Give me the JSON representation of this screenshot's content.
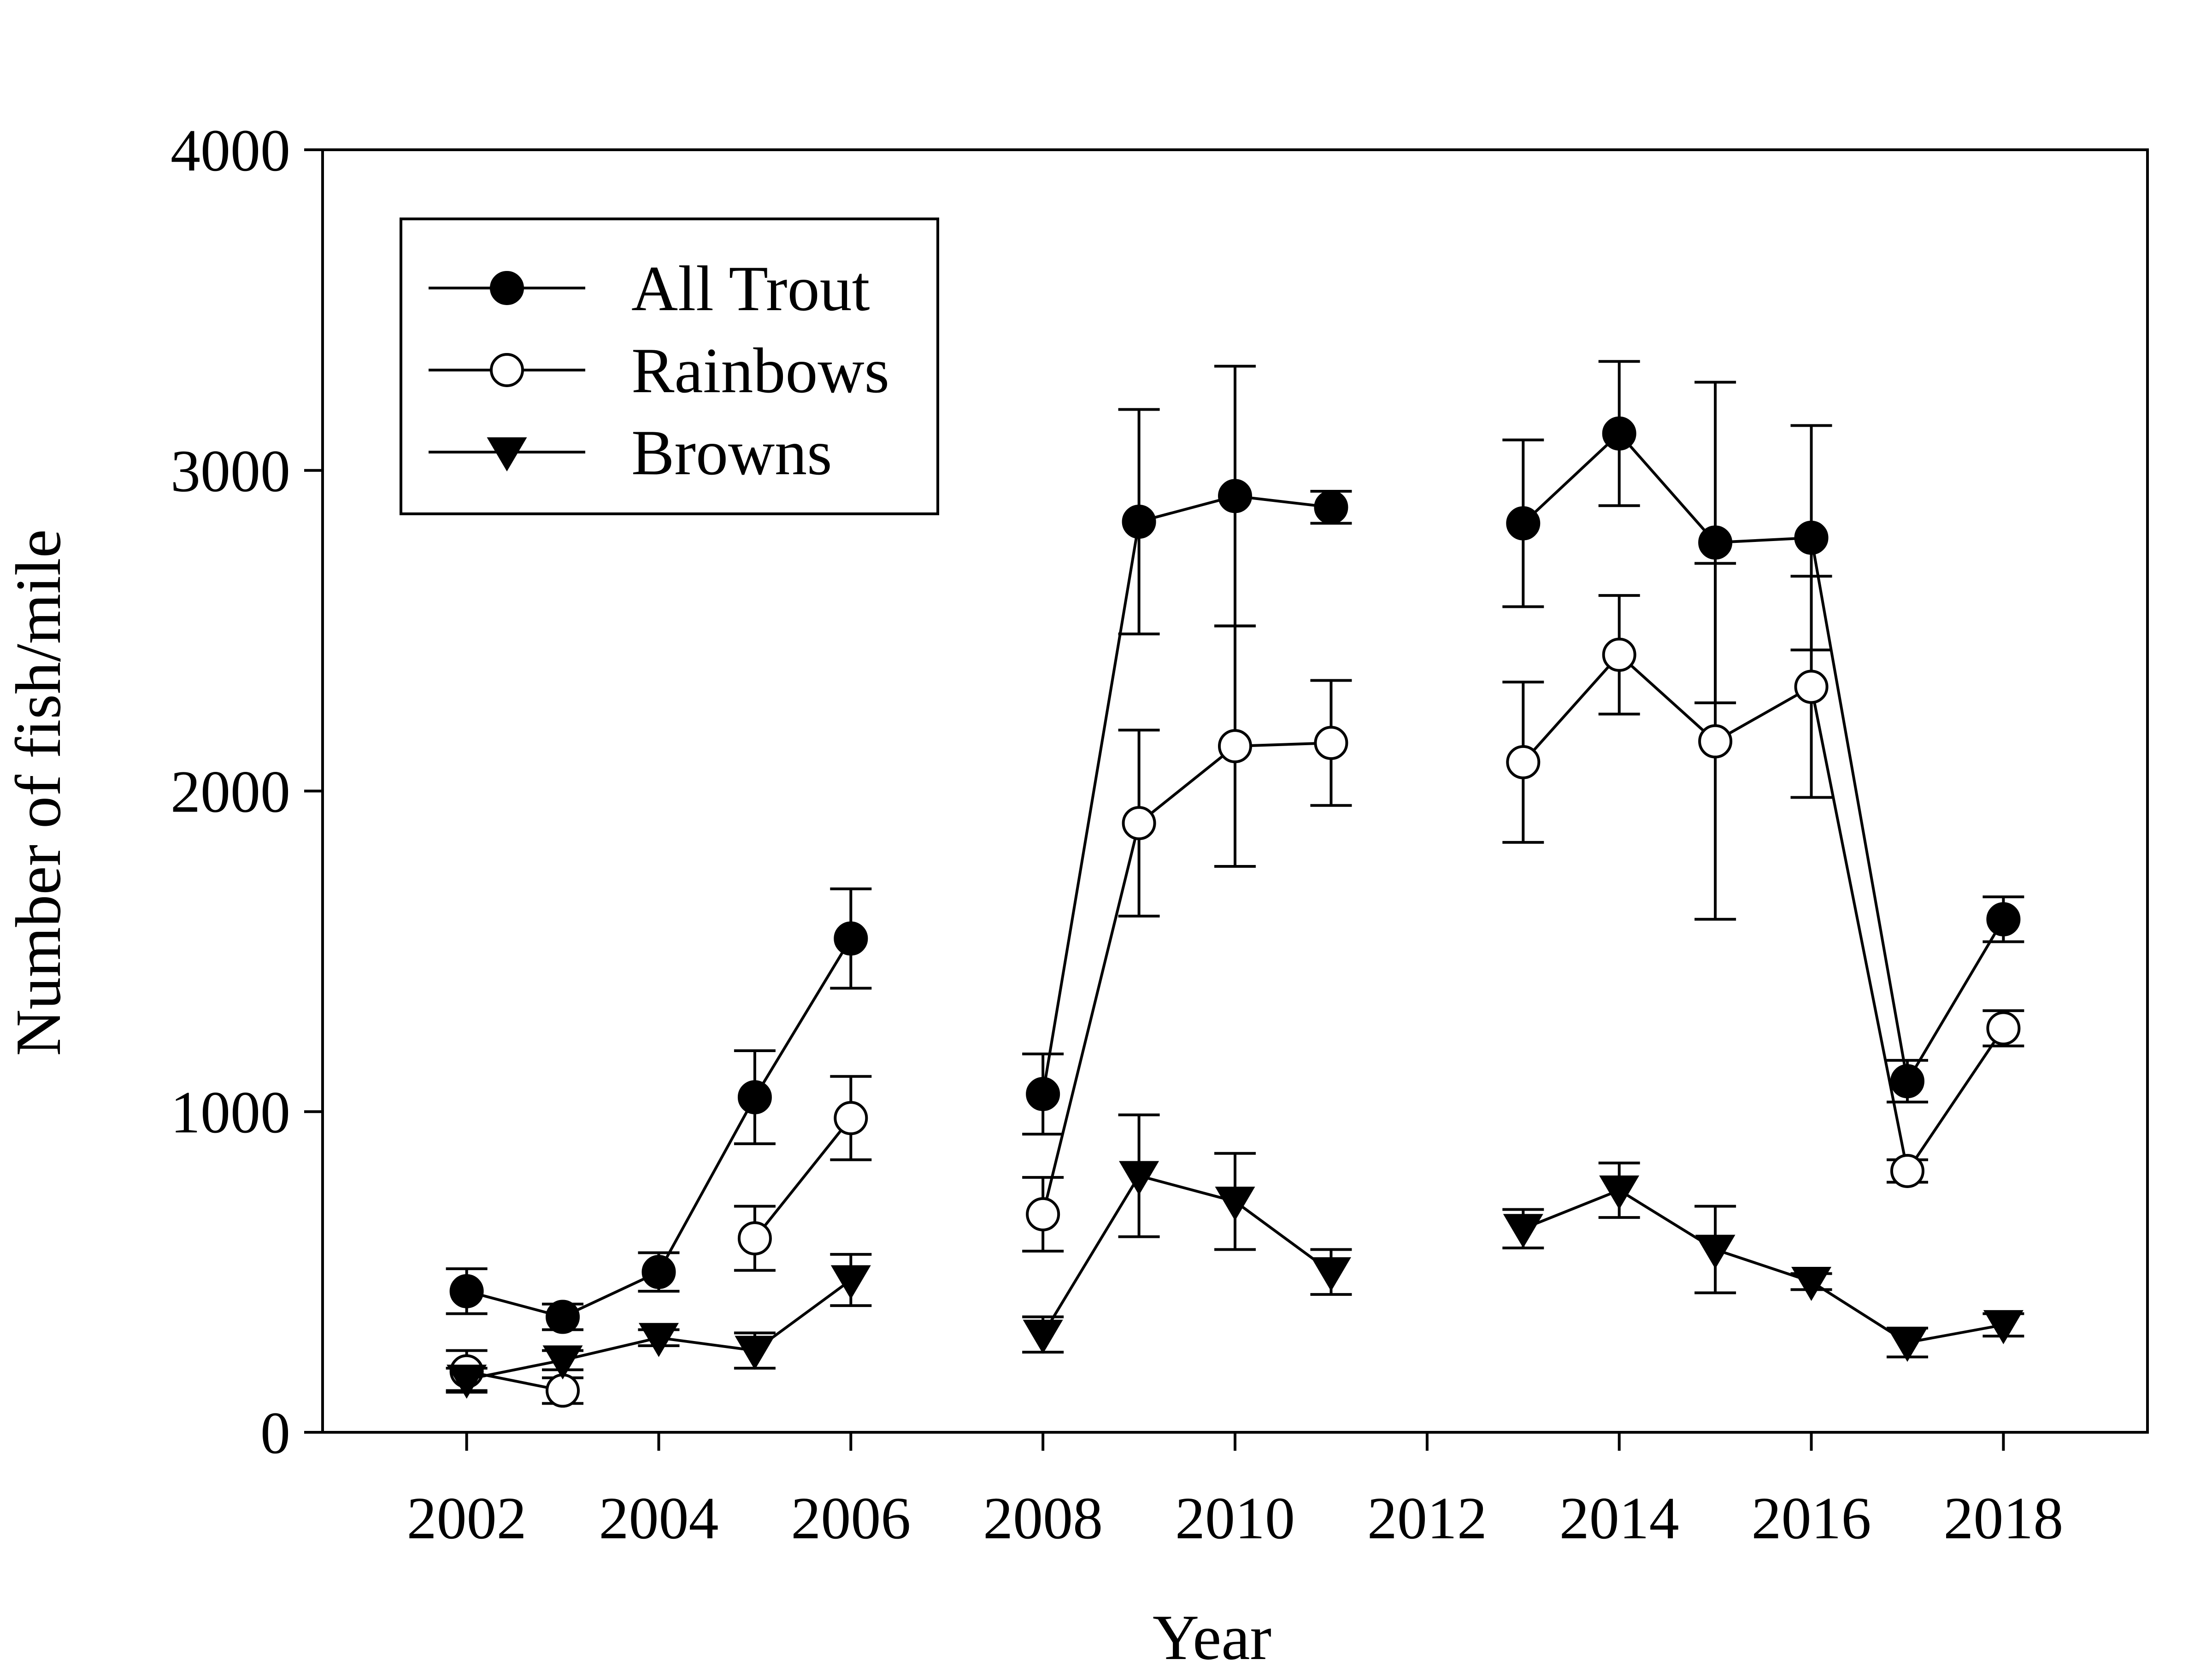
{
  "chart_data": {
    "type": "line",
    "title": "",
    "xlabel": "Year",
    "ylabel": "Number of fish/mile",
    "xlim": [
      2000.5,
      2019.5
    ],
    "ylim": [
      0,
      4000
    ],
    "xticks": [
      2002,
      2004,
      2006,
      2008,
      2010,
      2012,
      2014,
      2016,
      2018
    ],
    "yticks": [
      0,
      1000,
      2000,
      3000,
      4000
    ],
    "grid": false,
    "legend_position": "top-left",
    "series": [
      {
        "name": "All Trout",
        "marker": "filled-circle",
        "segments": [
          [
            {
              "x": 2002,
              "y": 440,
              "err": 70
            },
            {
              "x": 2003,
              "y": 360,
              "err": 40
            },
            {
              "x": 2004,
              "y": 500,
              "err": 60
            },
            {
              "x": 2005,
              "y": 1045,
              "err": 145
            },
            {
              "x": 2006,
              "y": 1540,
              "err": 155
            }
          ],
          [
            {
              "x": 2008,
              "y": 1055,
              "err": 125
            },
            {
              "x": 2009,
              "y": 2840,
              "err": 350
            },
            {
              "x": 2010,
              "y": 2920,
              "err": 405
            },
            {
              "x": 2011,
              "y": 2885,
              "err": 50
            }
          ],
          [
            {
              "x": 2013,
              "y": 2835,
              "err": 260
            },
            {
              "x": 2014,
              "y": 3115,
              "err": 225
            },
            {
              "x": 2015,
              "y": 2775,
              "err": 500
            },
            {
              "x": 2016,
              "y": 2790,
              "err": 350
            },
            {
              "x": 2017,
              "y": 1095,
              "err": 65
            },
            {
              "x": 2018,
              "y": 1600,
              "err": 70
            }
          ]
        ]
      },
      {
        "name": "Rainbows",
        "marker": "open-circle",
        "segments": [
          [
            {
              "x": 2002,
              "y": 190,
              "err": 65
            },
            {
              "x": 2003,
              "y": 130,
              "err": 40
            }
          ],
          [
            {
              "x": 2005,
              "y": 605,
              "err": 100
            },
            {
              "x": 2006,
              "y": 980,
              "err": 130
            }
          ],
          [
            {
              "x": 2008,
              "y": 680,
              "err": 115
            },
            {
              "x": 2009,
              "y": 1900,
              "err": 290
            },
            {
              "x": 2010,
              "y": 2140,
              "err": 375
            },
            {
              "x": 2011,
              "y": 2150,
              "err": 195
            }
          ],
          [
            {
              "x": 2013,
              "y": 2090,
              "err": 250
            },
            {
              "x": 2014,
              "y": 2425,
              "err": 185
            },
            {
              "x": 2015,
              "y": 2155,
              "err": 555
            },
            {
              "x": 2016,
              "y": 2325,
              "err": 345
            },
            {
              "x": 2017,
              "y": 815,
              "err": 35
            },
            {
              "x": 2018,
              "y": 1260,
              "err": 55
            }
          ]
        ]
      },
      {
        "name": "Browns",
        "marker": "filled-triangle-down",
        "segments": [
          [
            {
              "x": 2002,
              "y": 165,
              "err": 35
            },
            {
              "x": 2003,
              "y": 225,
              "err": 30
            },
            {
              "x": 2004,
              "y": 295,
              "err": 25
            },
            {
              "x": 2005,
              "y": 255,
              "err": 55
            },
            {
              "x": 2006,
              "y": 475,
              "err": 80
            }
          ],
          [
            {
              "x": 2008,
              "y": 305,
              "err": 55
            },
            {
              "x": 2009,
              "y": 800,
              "err": 190
            },
            {
              "x": 2010,
              "y": 720,
              "err": 150
            },
            {
              "x": 2011,
              "y": 500,
              "err": 70
            }
          ],
          [
            {
              "x": 2013,
              "y": 635,
              "err": 60
            },
            {
              "x": 2014,
              "y": 755,
              "err": 85
            },
            {
              "x": 2015,
              "y": 570,
              "err": 135
            },
            {
              "x": 2016,
              "y": 470,
              "err": 25
            },
            {
              "x": 2017,
              "y": 280,
              "err": 45
            },
            {
              "x": 2018,
              "y": 335,
              "err": 35
            }
          ]
        ]
      }
    ]
  }
}
